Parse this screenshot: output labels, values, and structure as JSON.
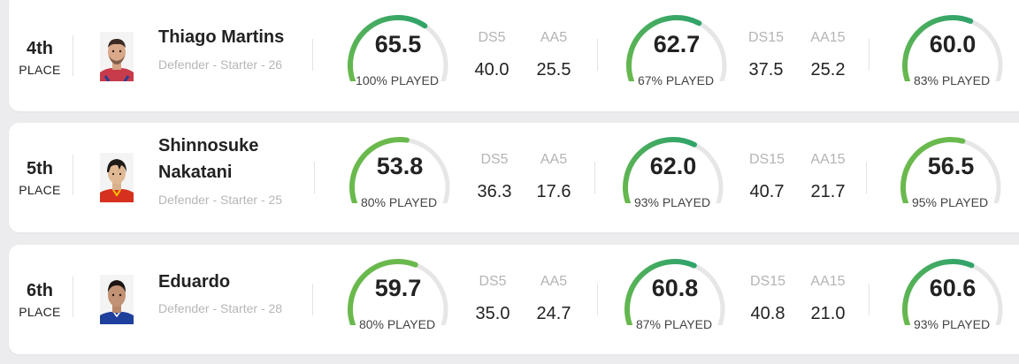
{
  "colors": {
    "gauge_track": "#e6e6e6",
    "gauge_high": "#2fa36b",
    "gauge_mid": "#6ab94d",
    "text_primary": "#222222",
    "text_muted": "#b6b6b6"
  },
  "players": [
    {
      "rank_num": "4th",
      "rank_label": "PLACE",
      "name": "Thiago Martins",
      "meta": "Defender - Starter - 26",
      "avatar_icon": "player-portrait-icon",
      "windows": [
        {
          "score": "65.5",
          "level": 0.655,
          "played": "100% PLAYED",
          "ds_label": "DS5",
          "ds_value": "40.0",
          "aa_label": "AA5",
          "aa_value": "25.5"
        },
        {
          "score": "62.7",
          "level": 0.627,
          "played": "67% PLAYED",
          "ds_label": "DS15",
          "ds_value": "37.5",
          "aa_label": "AA15",
          "aa_value": "25.2"
        },
        {
          "score": "60.0",
          "level": 0.6,
          "played": "83% PLAYED"
        }
      ]
    },
    {
      "rank_num": "5th",
      "rank_label": "PLACE",
      "name": "Shinnosuke Nakatani",
      "meta": "Defender - Starter - 25",
      "avatar_icon": "player-portrait-icon",
      "windows": [
        {
          "score": "53.8",
          "level": 0.538,
          "played": "80% PLAYED",
          "ds_label": "DS5",
          "ds_value": "36.3",
          "aa_label": "AA5",
          "aa_value": "17.6"
        },
        {
          "score": "62.0",
          "level": 0.62,
          "played": "93% PLAYED",
          "ds_label": "DS15",
          "ds_value": "40.7",
          "aa_label": "AA15",
          "aa_value": "21.7"
        },
        {
          "score": "56.5",
          "level": 0.565,
          "played": "95% PLAYED"
        }
      ]
    },
    {
      "rank_num": "6th",
      "rank_label": "PLACE",
      "name": "Eduardo",
      "meta": "Defender - Starter - 28",
      "avatar_icon": "player-portrait-icon",
      "windows": [
        {
          "score": "59.7",
          "level": 0.597,
          "played": "80% PLAYED",
          "ds_label": "DS5",
          "ds_value": "35.0",
          "aa_label": "AA5",
          "aa_value": "24.7"
        },
        {
          "score": "60.8",
          "level": 0.608,
          "played": "87% PLAYED",
          "ds_label": "DS15",
          "ds_value": "40.8",
          "aa_label": "AA15",
          "aa_value": "21.0"
        },
        {
          "score": "60.6",
          "level": 0.606,
          "played": "93% PLAYED"
        }
      ]
    }
  ]
}
